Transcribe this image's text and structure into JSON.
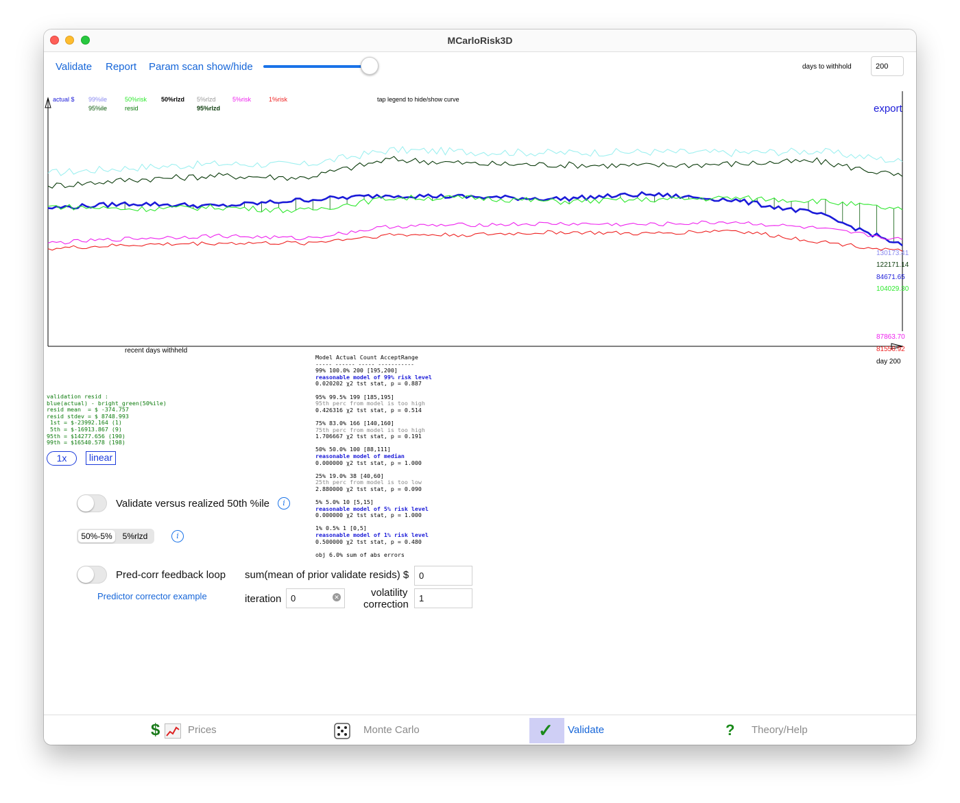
{
  "window": {
    "title": "MCarloRisk3D"
  },
  "toolbar": {
    "links": [
      "Validate",
      "Report",
      "Param scan show/hide"
    ],
    "slider_fraction": 0.97,
    "days_to_withhold_label": "days to withhold",
    "days_to_withhold_value": "200"
  },
  "legend": {
    "row1": [
      {
        "label": "actual $",
        "color": "#1a1ad8"
      },
      {
        "label": "99%ile",
        "color": "#8a8af0"
      },
      {
        "label": "50%risk",
        "color": "#2ee82e"
      },
      {
        "label": "50%rlzd",
        "color": "#000000"
      },
      {
        "label": "5%rlzd",
        "color": "#999999"
      },
      {
        "label": "5%risk",
        "color": "#ee22ee"
      },
      {
        "label": "1%risk",
        "color": "#ee2222"
      }
    ],
    "row2": [
      {
        "label": "95%ile",
        "color": "#0a5a0a"
      },
      {
        "label": "resid",
        "color": "#0a7a0a"
      },
      {
        "label": "95%rlzd",
        "color": "#0a3a0a"
      }
    ],
    "hint": "tap legend to hide/show curve"
  },
  "chart": {
    "export_label": "export",
    "x_label": "recent days withheld",
    "day_label": "day 200",
    "right_values": [
      {
        "text": "130173.41",
        "color": "#8a8af0"
      },
      {
        "text": "122171.14",
        "color": "#0a3a0a"
      },
      {
        "text": "84671.65",
        "color": "#1a1ad8"
      },
      {
        "text": "104029.30",
        "color": "#2ee82e"
      },
      {
        "text": "87863.70",
        "color": "#ee22ee"
      },
      {
        "text": "81556.92",
        "color": "#ee2222"
      }
    ]
  },
  "chart_data": {
    "type": "line",
    "title": "",
    "xlabel": "recent days withheld",
    "ylabel": "",
    "x": [
      0,
      20,
      40,
      60,
      80,
      100,
      120,
      140,
      160,
      180,
      200
    ],
    "series": [
      {
        "name": "99%ile",
        "color": "#9ef0f0",
        "values": [
          124000,
          127000,
          129000,
          128500,
          136500,
          135500,
          135000,
          135500,
          135000,
          136000,
          130173.41
        ]
      },
      {
        "name": "95%ile",
        "color": "#0a3a0a",
        "values": [
          117000,
          120500,
          122500,
          121500,
          131500,
          129000,
          128500,
          128000,
          129000,
          130500,
          122171.14
        ]
      },
      {
        "name": "actual $",
        "color": "#1a1ad8",
        "values": [
          105000,
          107500,
          106000,
          109500,
          112000,
          111000,
          110000,
          112500,
          109500,
          102000,
          84671.65
        ]
      },
      {
        "name": "50%risk",
        "color": "#2ee82e",
        "values": [
          106000,
          104500,
          105500,
          103500,
          110500,
          110500,
          108500,
          109500,
          110500,
          109000,
          104029.3
        ]
      },
      {
        "name": "5%risk",
        "color": "#ee22ee",
        "values": [
          86000,
          88500,
          90000,
          88500,
          95000,
          96000,
          96500,
          96000,
          97500,
          94000,
          87863.7
        ]
      },
      {
        "name": "1%risk",
        "color": "#ee2222",
        "values": [
          83000,
          85000,
          86000,
          86000,
          90500,
          90500,
          92000,
          91000,
          93000,
          87000,
          81556.92
        ]
      }
    ]
  },
  "resid_stats": [
    "validation resid :",
    "blue(actual) - bright_green(50%ile)",
    "resid mean  = $ -374.757",
    "resid stdev = $ 8748.993",
    " 1st = $-23992.164 (1)",
    " 5th = $-16913.867 (9)",
    "95th = $14277.656 (190)",
    "99th = $16540.578 (198)"
  ],
  "model_table": {
    "header": "Model Actual Count AcceptRange",
    "dashes": "----- ------ ----- -----------",
    "blocks": [
      {
        "line": "99% 100.0% 200 [195,200]",
        "verdict": "reasonable model of 99% risk level",
        "ok": true,
        "stat": "0.020202 χ2 tst stat, p = 0.887"
      },
      {
        "line": "95% 99.5% 199 [185,195]",
        "verdict": "95th perc from model is too high",
        "ok": false,
        "stat": "0.426316 χ2 tst stat, p = 0.514"
      },
      {
        "line": "75% 83.0% 166 [140,160]",
        "verdict": "75th perc from model is too high",
        "ok": false,
        "stat": "1.706667 χ2 tst stat, p = 0.191"
      },
      {
        "line": "50% 50.0% 100 [88,111]",
        "verdict": "reasonable model of median",
        "ok": true,
        "stat": "0.000000 χ2 tst stat, p = 1.000"
      },
      {
        "line": "25% 19.0% 38 [40,60]",
        "verdict": "25th perc from model is too low",
        "ok": false,
        "stat": "2.880000 χ2 tst stat, p = 0.090"
      },
      {
        "line": "5% 5.0% 10 [5,15]",
        "verdict": "reasonable model of 5% risk level",
        "ok": true,
        "stat": "0.000000 χ2 tst stat, p = 1.000"
      },
      {
        "line": "1% 0.5% 1 [0,5]",
        "verdict": "reasonable model of 1% risk level",
        "ok": true,
        "stat": "0.500000 χ2 tst stat, p = 0.480"
      }
    ],
    "obj": "obj 6.0% sum of abs errors"
  },
  "controls": {
    "zoom_label": "1x",
    "scale_label": "linear",
    "validate_toggle_label": "Validate versus realized 50th %ile",
    "segment": [
      "50%-5%",
      "5%rlzd"
    ],
    "predcorr_label": "Pred-corr feedback loop",
    "predcorr_link": "Predictor corrector example",
    "sum_label": "sum(mean of prior validate resids) $",
    "sum_value": "0",
    "iteration_label": "iteration",
    "iteration_value": "0",
    "volatility_label_1": "volatility",
    "volatility_label_2": "correction",
    "volatility_value": "1"
  },
  "tabs": [
    {
      "label": "Prices",
      "active": false
    },
    {
      "label": "Monte Carlo",
      "active": false
    },
    {
      "label": "Validate",
      "active": true
    },
    {
      "label": "Theory/Help",
      "active": false
    }
  ]
}
